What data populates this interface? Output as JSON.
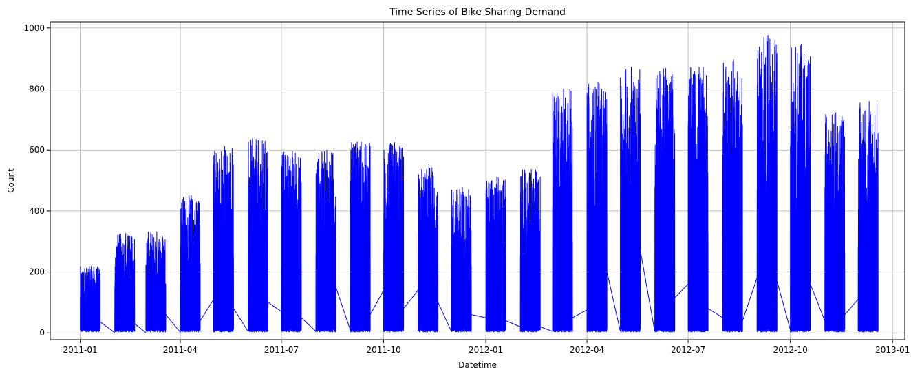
{
  "chart_data": {
    "type": "line",
    "title": "Time Series of Bike Sharing Demand",
    "xlabel": "Datetime",
    "ylabel": "Count",
    "xlim": [
      "2010-12-05",
      "2013-01-12"
    ],
    "ylim": [
      -22,
      1020
    ],
    "x_ticks": [
      "2011-01",
      "2011-04",
      "2011-07",
      "2011-10",
      "2012-01",
      "2012-04",
      "2012-07",
      "2012-10",
      "2013-01"
    ],
    "y_ticks": [
      0,
      200,
      400,
      600,
      800,
      1000
    ],
    "grid": true,
    "line_color": "#0000ff",
    "series": [
      {
        "values_note": "",
        "monthly_windows": [
          {
            "start": "2011-01-01",
            "end": "2011-01-19",
            "peak": 219
          },
          {
            "start": "2011-02-01",
            "end": "2011-02-19",
            "peak": 327
          },
          {
            "start": "2011-03-01",
            "end": "2011-03-19",
            "peak": 332
          },
          {
            "start": "2011-04-01",
            "end": "2011-04-19",
            "peak": 452
          },
          {
            "start": "2011-05-01",
            "end": "2011-05-19",
            "peak": 612
          },
          {
            "start": "2011-06-01",
            "end": "2011-06-19",
            "peak": 638
          },
          {
            "start": "2011-07-01",
            "end": "2011-07-19",
            "peak": 597
          },
          {
            "start": "2011-08-01",
            "end": "2011-08-19",
            "peak": 600
          },
          {
            "start": "2011-09-01",
            "end": "2011-09-19",
            "peak": 628
          },
          {
            "start": "2011-10-01",
            "end": "2011-10-19",
            "peak": 625
          },
          {
            "start": "2011-11-01",
            "end": "2011-11-19",
            "peak": 553
          },
          {
            "start": "2011-12-01",
            "end": "2011-12-19",
            "peak": 478
          },
          {
            "start": "2012-01-01",
            "end": "2012-01-19",
            "peak": 512
          },
          {
            "start": "2012-02-01",
            "end": "2012-02-19",
            "peak": 537
          },
          {
            "start": "2012-03-01",
            "end": "2012-03-19",
            "peak": 801
          },
          {
            "start": "2012-04-01",
            "end": "2012-04-19",
            "peak": 822
          },
          {
            "start": "2012-05-01",
            "end": "2012-05-19",
            "peak": 873
          },
          {
            "start": "2012-06-01",
            "end": "2012-06-19",
            "peak": 869
          },
          {
            "start": "2012-07-01",
            "end": "2012-07-19",
            "peak": 873
          },
          {
            "start": "2012-08-01",
            "end": "2012-08-19",
            "peak": 897
          },
          {
            "start": "2012-09-01",
            "end": "2012-09-19",
            "peak": 977
          },
          {
            "start": "2012-10-01",
            "end": "2012-10-19",
            "peak": 948
          },
          {
            "start": "2012-11-01",
            "end": "2012-11-19",
            "peak": 723
          },
          {
            "start": "2012-12-01",
            "end": "2012-12-19",
            "peak": 760
          }
        ],
        "connectors": [
          {
            "from": [
              "2011-01-19",
              36
            ],
            "to": [
              "2011-02-01",
              1
            ]
          },
          {
            "from": [
              "2011-02-19",
              30
            ],
            "to": [
              "2011-03-01",
              1
            ]
          },
          {
            "from": [
              "2011-03-19",
              60
            ],
            "to": [
              "2011-04-01",
              2
            ]
          },
          {
            "from": [
              "2011-04-19",
              40
            ],
            "to": [
              "2011-05-01",
              110
            ]
          },
          {
            "from": [
              "2011-05-19",
              80
            ],
            "to": [
              "2011-06-01",
              5
            ]
          },
          {
            "from": [
              "2011-06-19",
              100
            ],
            "to": [
              "2011-07-01",
              70
            ]
          },
          {
            "from": [
              "2011-07-19",
              50
            ],
            "to": [
              "2011-08-01",
              5
            ]
          },
          {
            "from": [
              "2011-08-19",
              150
            ],
            "to": [
              "2011-09-01",
              10
            ]
          },
          {
            "from": [
              "2011-09-19",
              60
            ],
            "to": [
              "2011-10-01",
              140
            ]
          },
          {
            "from": [
              "2011-10-19",
              80
            ],
            "to": [
              "2011-11-01",
              140
            ]
          },
          {
            "from": [
              "2011-11-19",
              100
            ],
            "to": [
              "2011-12-01",
              5
            ]
          },
          {
            "from": [
              "2011-12-19",
              60
            ],
            "to": [
              "2012-01-01",
              50
            ]
          },
          {
            "from": [
              "2012-01-19",
              40
            ],
            "to": [
              "2012-02-01",
              20
            ]
          },
          {
            "from": [
              "2012-02-19",
              20
            ],
            "to": [
              "2012-03-01",
              5
            ]
          },
          {
            "from": [
              "2012-03-19",
              50
            ],
            "to": [
              "2012-04-01",
              75
            ]
          },
          {
            "from": [
              "2012-04-19",
              200
            ],
            "to": [
              "2012-05-01",
              5
            ]
          },
          {
            "from": [
              "2012-05-19",
              270
            ],
            "to": [
              "2012-06-01",
              5
            ]
          },
          {
            "from": [
              "2012-06-19",
              115
            ],
            "to": [
              "2012-07-01",
              160
            ]
          },
          {
            "from": [
              "2012-07-19",
              80
            ],
            "to": [
              "2012-08-01",
              50
            ]
          },
          {
            "from": [
              "2012-08-19",
              40
            ],
            "to": [
              "2012-09-01",
              180
            ]
          },
          {
            "from": [
              "2012-09-19",
              170
            ],
            "to": [
              "2012-10-01",
              10
            ]
          },
          {
            "from": [
              "2012-10-19",
              160
            ],
            "to": [
              "2012-11-01",
              40
            ]
          },
          {
            "from": [
              "2012-11-19",
              60
            ],
            "to": [
              "2012-12-01",
              110
            ]
          }
        ]
      }
    ]
  }
}
